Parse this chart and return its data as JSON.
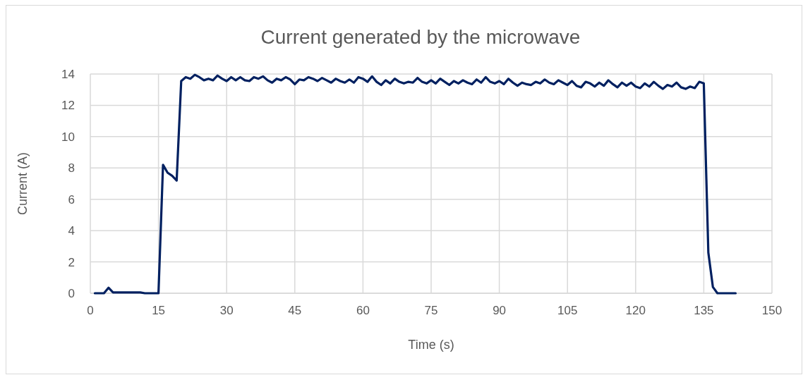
{
  "chart_data": {
    "type": "line",
    "title": "Current generated by the microwave",
    "xlabel": "Time (s)",
    "ylabel": "Current (A)",
    "x": [
      1,
      2,
      3,
      4,
      5,
      6,
      7,
      8,
      9,
      10,
      11,
      12,
      13,
      14,
      15,
      16,
      17,
      18,
      19,
      20,
      21,
      22,
      23,
      24,
      25,
      26,
      27,
      28,
      29,
      30,
      31,
      32,
      33,
      34,
      35,
      36,
      37,
      38,
      39,
      40,
      41,
      42,
      43,
      44,
      45,
      46,
      47,
      48,
      49,
      50,
      51,
      52,
      53,
      54,
      55,
      56,
      57,
      58,
      59,
      60,
      61,
      62,
      63,
      64,
      65,
      66,
      67,
      68,
      69,
      70,
      71,
      72,
      73,
      74,
      75,
      76,
      77,
      78,
      79,
      80,
      81,
      82,
      83,
      84,
      85,
      86,
      87,
      88,
      89,
      90,
      91,
      92,
      93,
      94,
      95,
      96,
      97,
      98,
      99,
      100,
      101,
      102,
      103,
      104,
      105,
      106,
      107,
      108,
      109,
      110,
      111,
      112,
      113,
      114,
      115,
      116,
      117,
      118,
      119,
      120,
      121,
      122,
      123,
      124,
      125,
      126,
      127,
      128,
      129,
      130,
      131,
      132,
      133,
      134,
      135,
      136,
      137,
      138,
      139,
      140,
      141,
      142
    ],
    "series": [
      {
        "color": "#002060",
        "values": [
          0,
          0,
          0,
          0.35,
          0.05,
          0.05,
          0.05,
          0.05,
          0.05,
          0.05,
          0.05,
          0,
          0,
          0,
          0,
          8.2,
          7.7,
          7.5,
          7.2,
          13.55,
          13.8,
          13.7,
          13.95,
          13.8,
          13.6,
          13.7,
          13.6,
          13.9,
          13.7,
          13.55,
          13.8,
          13.6,
          13.8,
          13.6,
          13.55,
          13.8,
          13.7,
          13.85,
          13.6,
          13.45,
          13.7,
          13.6,
          13.8,
          13.65,
          13.35,
          13.65,
          13.6,
          13.8,
          13.7,
          13.55,
          13.75,
          13.6,
          13.45,
          13.7,
          13.55,
          13.45,
          13.65,
          13.45,
          13.8,
          13.7,
          13.5,
          13.85,
          13.5,
          13.3,
          13.6,
          13.4,
          13.7,
          13.5,
          13.4,
          13.5,
          13.45,
          13.75,
          13.5,
          13.4,
          13.6,
          13.4,
          13.7,
          13.5,
          13.3,
          13.55,
          13.4,
          13.6,
          13.45,
          13.35,
          13.65,
          13.45,
          13.8,
          13.5,
          13.4,
          13.55,
          13.35,
          13.7,
          13.45,
          13.25,
          13.45,
          13.35,
          13.3,
          13.5,
          13.4,
          13.65,
          13.45,
          13.35,
          13.6,
          13.45,
          13.3,
          13.55,
          13.25,
          13.15,
          13.5,
          13.4,
          13.2,
          13.45,
          13.25,
          13.6,
          13.35,
          13.15,
          13.45,
          13.25,
          13.45,
          13.2,
          13.1,
          13.4,
          13.2,
          13.5,
          13.25,
          13.05,
          13.3,
          13.2,
          13.45,
          13.15,
          13.05,
          13.2,
          13.1,
          13.5,
          13.4,
          2.6,
          0.4,
          0,
          0,
          0,
          0,
          0
        ]
      }
    ],
    "xlim": [
      0,
      150
    ],
    "xticks": [
      0,
      15,
      30,
      45,
      60,
      75,
      90,
      105,
      120,
      135,
      150
    ],
    "ylim": [
      0,
      14
    ],
    "yticks": [
      0,
      2,
      4,
      6,
      8,
      10,
      12,
      14
    ],
    "grid": true,
    "marker": "none",
    "line_style": "solid"
  }
}
